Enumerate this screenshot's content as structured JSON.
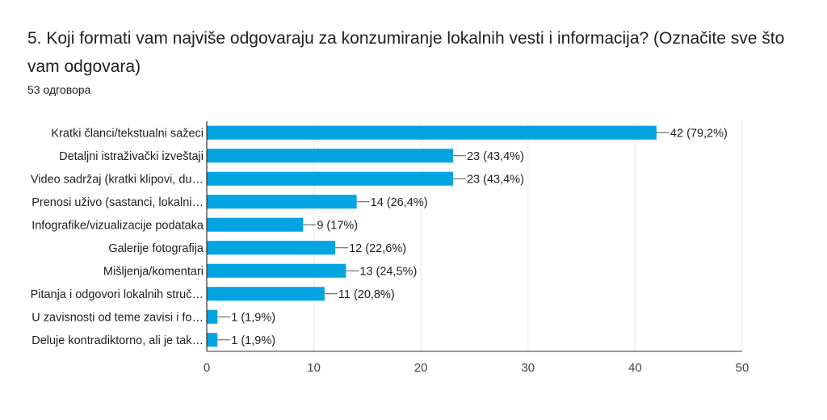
{
  "question": {
    "title": "5. Koji formati vam najviše odgovaraju za konzumiranje lokalnih vesti i informacija? (Označite sve što vam odgovara)",
    "response_count": "53 одговора"
  },
  "colors": {
    "bar": "#03a4e2",
    "grid": "#e6e6e6",
    "axis": "#333333",
    "text": "#202124"
  },
  "chart_data": {
    "type": "bar",
    "orientation": "horizontal",
    "categories": [
      "Kratki članci/tekstualni sažeci",
      "Detaljni istraživački izveštaji",
      "Video sadržaj (kratki klipovi, du…",
      "Prenosi uživo (sastanci, lokalni…",
      "Infografike/vizualizacije podataka",
      "Galerije fotografija",
      "Mišljenja/komentari",
      "Pitanja i odgovori lokalnih struč…",
      "U zavisnosti od teme zavisi i fo…",
      "Deluje kontradiktorno, ali je tak…"
    ],
    "values": [
      42,
      23,
      23,
      14,
      9,
      12,
      13,
      11,
      1,
      1
    ],
    "data_labels": [
      "42 (79,2%)",
      "23 (43,4%)",
      "23 (43,4%)",
      "14 (26,4%)",
      "9 (17%)",
      "12 (22,6%)",
      "13 (24,5%)",
      "11 (20,8%)",
      "1 (1,9%)",
      "1 (1,9%)"
    ],
    "xlim": [
      0,
      50
    ],
    "x_ticks": [
      0,
      10,
      20,
      30,
      40,
      50
    ],
    "grid": true
  }
}
